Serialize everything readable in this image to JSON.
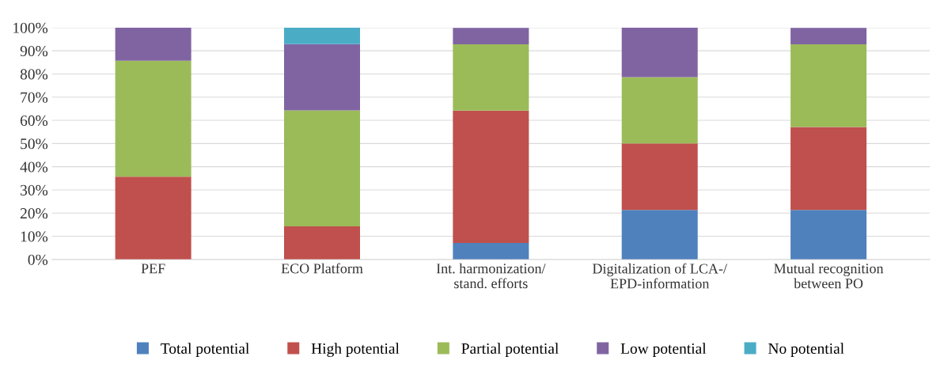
{
  "chart_data": {
    "type": "bar",
    "stacked": true,
    "categories": [
      "PEF",
      "ECO Platform",
      "Int. harmonization/\nstand. efforts",
      "Digitalization of LCA-/\nEPD-information",
      "Mutual recognition\nbetween PO"
    ],
    "series": [
      {
        "name": "Total potential",
        "color": "#4f81bd",
        "values": [
          0,
          0,
          7.1,
          21.4,
          21.4
        ]
      },
      {
        "name": "High potential",
        "color": "#c0504d",
        "values": [
          35.7,
          14.3,
          57.1,
          28.6,
          35.7
        ]
      },
      {
        "name": "Partial potential",
        "color": "#9bbb59",
        "values": [
          50,
          50,
          28.6,
          28.6,
          35.7
        ]
      },
      {
        "name": "Low potential",
        "color": "#8064a2",
        "values": [
          14.3,
          28.6,
          7.1,
          21.4,
          7.1
        ]
      },
      {
        "name": "No potential",
        "color": "#4bacc6",
        "values": [
          0,
          7.1,
          0,
          0,
          0
        ]
      }
    ],
    "ylim": [
      0,
      100
    ],
    "yticks": [
      {
        "value": 0,
        "label": "0%"
      },
      {
        "value": 10,
        "label": "10%"
      },
      {
        "value": 20,
        "label": "20%"
      },
      {
        "value": 30,
        "label": "30%"
      },
      {
        "value": 40,
        "label": "40%"
      },
      {
        "value": 50,
        "label": "50%"
      },
      {
        "value": 60,
        "label": "60%"
      },
      {
        "value": 70,
        "label": "70%"
      },
      {
        "value": 80,
        "label": "80%"
      },
      {
        "value": 90,
        "label": "90%"
      },
      {
        "value": 100,
        "label": "100%"
      }
    ],
    "grid": "y",
    "legend": "bottom"
  }
}
